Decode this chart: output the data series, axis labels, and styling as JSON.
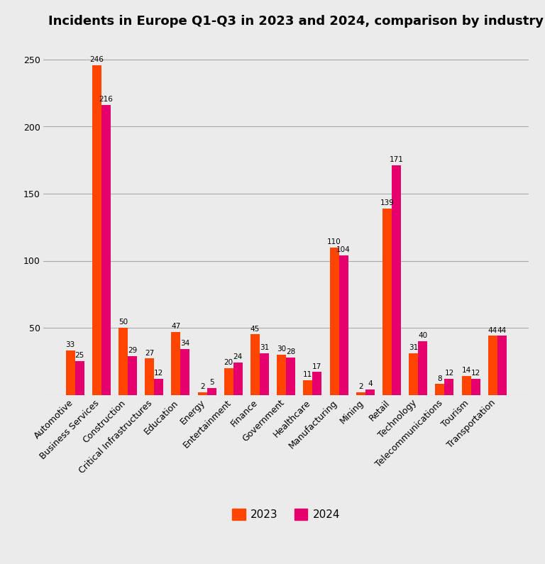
{
  "title": "Incidents in Europe Q1-Q3 in 2023 and 2024, comparison by industry",
  "categories": [
    "Automotive",
    "Business Services",
    "Construction",
    "Critical Infrastructures",
    "Education",
    "Energy",
    "Entertainment",
    "Finance",
    "Government",
    "Healthcare",
    "Manufacturing",
    "Mining",
    "Retail",
    "Technology",
    "Telecommunications",
    "Tourism",
    "Transportation"
  ],
  "values_2023": [
    33,
    246,
    50,
    27,
    47,
    2,
    20,
    45,
    30,
    11,
    110,
    2,
    139,
    31,
    8,
    14,
    44
  ],
  "values_2024": [
    25,
    216,
    29,
    12,
    34,
    5,
    24,
    31,
    28,
    17,
    104,
    4,
    171,
    40,
    12,
    12,
    44
  ],
  "color_2023": "#FF4500",
  "color_2024": "#E5006E",
  "background_color": "#EBEBEB",
  "plot_bg_color": "#EBEBEB",
  "ylim": [
    0,
    265
  ],
  "yticks": [
    0,
    50,
    100,
    150,
    200,
    250
  ],
  "bar_width": 0.35,
  "legend_labels": [
    "2023",
    "2024"
  ],
  "title_fontsize": 13,
  "label_fontsize": 7.5,
  "tick_fontsize": 9,
  "grid_color": "#AAAAAA",
  "grid_linewidth": 0.8
}
